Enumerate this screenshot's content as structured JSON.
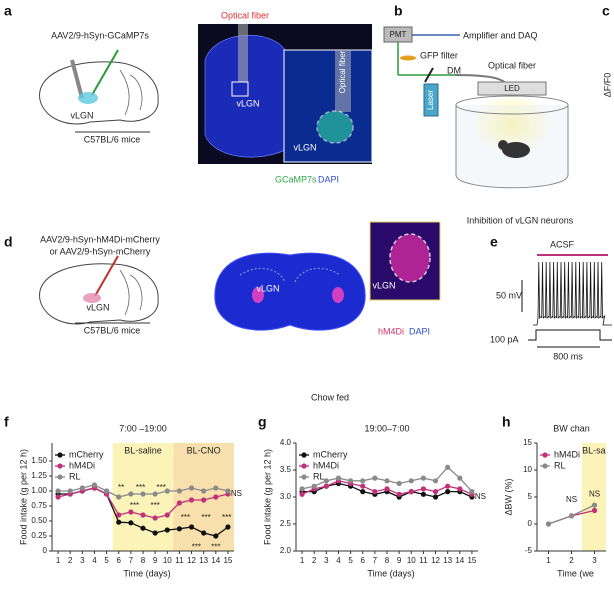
{
  "panel_labels": [
    "a",
    "b",
    "c",
    "d",
    "e",
    "f",
    "g",
    "h"
  ],
  "a": {
    "virus": "AAV2/9-hSyn-GCaMP7s",
    "region": "vLGN",
    "mice": "C57BL/6 mice",
    "fiber": "Optical fiber",
    "slice_region": "vLGN",
    "inset_fiber": "Optical fiber",
    "inset_region": "vLGN",
    "stain_1": "GCaMP7s",
    "stain_2": "DAPI"
  },
  "b": {
    "pmt": "PMT",
    "daq": "Amplifier and DAQ",
    "filter": "GFP filter",
    "dm": "DM",
    "fiber": "Optical fiber",
    "laser": "Laser",
    "led": "LED"
  },
  "c": {
    "ylabel": "ΔF/F0"
  },
  "section_1": "Inhibition of vLGN neurons",
  "d": {
    "virus_1": "AAV2/9-hSyn-hM4Di-mCherry",
    "virus_2": "or AAV2/9-hSyn-mCherry",
    "region": "vLGN",
    "mice": "C57BL/6 mice",
    "slice_region": "vLGN",
    "inset_region": "vLGN",
    "stain_1": "hM4Di",
    "stain_2": "DAPI"
  },
  "e": {
    "condition": "ACSF",
    "voltage_scale": "50 mV",
    "current": "100 pA",
    "time_scale": "800 ms"
  },
  "section_2": "Chow fed",
  "chart_data": [
    {
      "type": "line",
      "title": "7:00 –19:00",
      "xlabel": "Time (days)",
      "ylabel": "Food intake (g per 12 h)",
      "x": [
        1,
        2,
        3,
        4,
        5,
        6,
        7,
        8,
        9,
        10,
        11,
        12,
        13,
        14,
        15
      ],
      "xlim": [
        0.5,
        15.5
      ],
      "xticks": [
        1,
        2,
        3,
        4,
        5,
        6,
        7,
        8,
        9,
        10,
        11,
        12,
        13,
        14,
        15
      ],
      "ylim": [
        0,
        1.8
      ],
      "yticks": [
        0,
        0.25,
        {
          "value": 0.5,
          "label": "0.50"
        },
        0.75,
        {
          "value": 1,
          "label": "1.00"
        },
        1.25,
        {
          "value": 1.5,
          "label": "1.50"
        }
      ],
      "regions": [
        {
          "label": "BL-saline",
          "range": [
            5.5,
            10.5
          ],
          "color": "#fbf3b8"
        },
        {
          "label": "BL-CNO",
          "range": [
            10.5,
            15.5
          ],
          "color": "#f8e0ac"
        }
      ],
      "legend": "upper left",
      "series": [
        {
          "name": "mCherry",
          "color": "#111111",
          "values": [
            0.95,
            0.95,
            1.0,
            1.05,
            0.95,
            0.48,
            0.47,
            0.38,
            0.3,
            0.35,
            0.37,
            0.4,
            0.3,
            0.25,
            0.4
          ]
        },
        {
          "name": "hM4Di",
          "color": "#c2307a",
          "values": [
            0.9,
            0.95,
            1.0,
            1.05,
            0.95,
            0.6,
            0.65,
            0.6,
            0.55,
            0.6,
            0.8,
            0.85,
            0.85,
            0.9,
            0.95
          ]
        },
        {
          "name": "RL",
          "color": "#8a8a8a",
          "values": [
            1.0,
            1.0,
            1.05,
            1.1,
            1.0,
            0.9,
            0.95,
            0.95,
            0.95,
            1.0,
            1.0,
            1.05,
            1.0,
            1.05,
            1.0
          ]
        }
      ],
      "annotations": [
        {
          "text": "**",
          "x": 6.2,
          "y": 1.05
        },
        {
          "text": "***",
          "x": 7.8,
          "y": 1.05
        },
        {
          "text": "***",
          "x": 9.5,
          "y": 1.05
        },
        {
          "text": "***",
          "x": 7.3,
          "y": 0.75
        },
        {
          "text": "***",
          "x": 9,
          "y": 0.75
        },
        {
          "text": "***",
          "x": 11.5,
          "y": 0.55
        },
        {
          "text": "***",
          "x": 13.2,
          "y": 0.55
        },
        {
          "text": "***",
          "x": 14.9,
          "y": 0.55
        },
        {
          "text": "***",
          "x": 12.4,
          "y": 0.06
        },
        {
          "text": "***",
          "x": 14,
          "y": 0.06
        },
        {
          "text": "NS",
          "x": 15.7,
          "y": 0.95
        }
      ]
    },
    {
      "type": "line",
      "title": "19:00–7:00",
      "xlabel": "Time (days)",
      "ylabel": "Food intake (g per 12 h)",
      "x": [
        1,
        2,
        3,
        4,
        5,
        6,
        7,
        8,
        9,
        10,
        11,
        12,
        13,
        14,
        15
      ],
      "xlim": [
        0.5,
        15.5
      ],
      "xticks": [
        1,
        2,
        3,
        4,
        5,
        6,
        7,
        8,
        9,
        10,
        11,
        12,
        13,
        14,
        15
      ],
      "ylim": [
        2,
        4
      ],
      "yticks": [
        {
          "value": 2,
          "label": "2.0"
        },
        2.5,
        {
          "value": 3,
          "label": "3.0"
        },
        3.5,
        {
          "value": 4,
          "label": "4.0"
        }
      ],
      "legend": "upper left",
      "series": [
        {
          "name": "mCherry",
          "color": "#111111",
          "values": [
            3.1,
            3.1,
            3.2,
            3.25,
            3.2,
            3.1,
            3.05,
            3.1,
            3.0,
            3.1,
            3.05,
            3.0,
            3.1,
            3.1,
            3.0
          ]
        },
        {
          "name": "hM4Di",
          "color": "#c2307a",
          "values": [
            3.05,
            3.15,
            3.2,
            3.3,
            3.25,
            3.2,
            3.1,
            3.15,
            3.05,
            3.1,
            3.15,
            3.1,
            3.2,
            3.15,
            3.05
          ]
        },
        {
          "name": "RL",
          "color": "#8a8a8a",
          "values": [
            3.15,
            3.2,
            3.3,
            3.35,
            3.3,
            3.3,
            3.35,
            3.3,
            3.25,
            3.3,
            3.35,
            3.3,
            3.55,
            3.35,
            3.1
          ]
        }
      ],
      "annotations": [
        {
          "text": "NS",
          "x": 15.7,
          "y": 3.0
        }
      ]
    },
    {
      "type": "line",
      "title": "BW chan",
      "xlabel": "Time (we",
      "ylabel": "ΔBW (%)",
      "x": [
        1,
        2,
        3
      ],
      "xlim": [
        0.5,
        3.5
      ],
      "xticks": [
        1,
        2,
        3
      ],
      "ylim": [
        -5,
        15
      ],
      "yticks": [
        -5,
        0,
        5,
        10,
        15
      ],
      "regions": [
        {
          "label": "BL-sa",
          "range": [
            2.45,
            3.5
          ],
          "color": "#fbf3b8"
        }
      ],
      "legend": "upper left",
      "series": [
        {
          "name": "hM4Di",
          "color": "#c2307a",
          "values": [
            0,
            1.5,
            2.5
          ]
        },
        {
          "name": "RL",
          "color": "#8a8a8a",
          "values": [
            0,
            1.5,
            3.5
          ]
        }
      ],
      "annotations": [
        {
          "text": "NS",
          "x": 2,
          "y": 4.5
        },
        {
          "text": "NS",
          "x": 3,
          "y": 5.5
        }
      ]
    }
  ]
}
